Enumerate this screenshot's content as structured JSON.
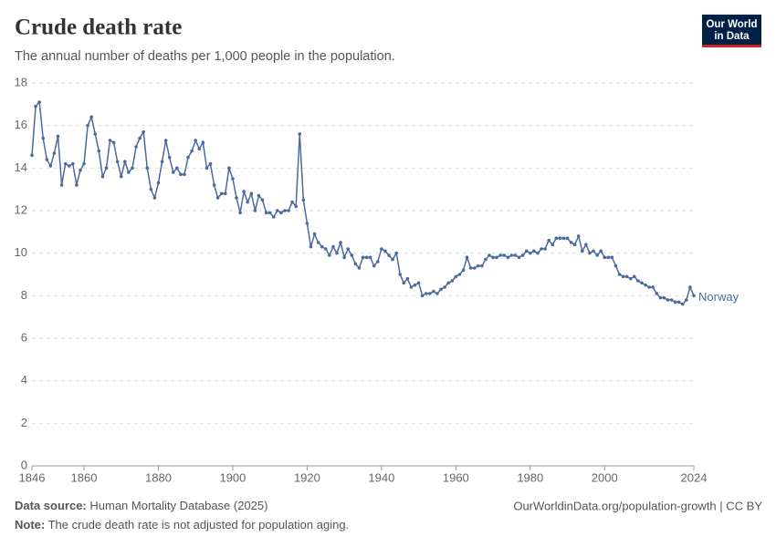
{
  "chart_data": {
    "type": "line",
    "title": "Crude death rate",
    "subtitle": "The annual number of deaths per 1,000 people in the population.",
    "logo": [
      "Our World",
      "in Data"
    ],
    "source_label": "Data source:",
    "source": "Human Mortality Database (2025)",
    "url": "OurWorldinData.org/population-growth | CC BY",
    "note_label": "Note:",
    "note": "The crude death rate is not adjusted for population aging.",
    "x": [
      1846,
      1847,
      1848,
      1849,
      1850,
      1851,
      1852,
      1853,
      1854,
      1855,
      1856,
      1857,
      1858,
      1859,
      1860,
      1861,
      1862,
      1863,
      1864,
      1865,
      1866,
      1867,
      1868,
      1869,
      1870,
      1871,
      1872,
      1873,
      1874,
      1875,
      1876,
      1877,
      1878,
      1879,
      1880,
      1881,
      1882,
      1883,
      1884,
      1885,
      1886,
      1887,
      1888,
      1889,
      1890,
      1891,
      1892,
      1893,
      1894,
      1895,
      1896,
      1897,
      1898,
      1899,
      1900,
      1901,
      1902,
      1903,
      1904,
      1905,
      1906,
      1907,
      1908,
      1909,
      1910,
      1911,
      1912,
      1913,
      1914,
      1915,
      1916,
      1917,
      1918,
      1919,
      1920,
      1921,
      1922,
      1923,
      1924,
      1925,
      1926,
      1927,
      1928,
      1929,
      1930,
      1931,
      1932,
      1933,
      1934,
      1935,
      1936,
      1937,
      1938,
      1939,
      1940,
      1941,
      1942,
      1943,
      1944,
      1945,
      1946,
      1947,
      1948,
      1949,
      1950,
      1951,
      1952,
      1953,
      1954,
      1955,
      1956,
      1957,
      1958,
      1959,
      1960,
      1961,
      1962,
      1963,
      1964,
      1965,
      1966,
      1967,
      1968,
      1969,
      1970,
      1971,
      1972,
      1973,
      1974,
      1975,
      1976,
      1977,
      1978,
      1979,
      1980,
      1981,
      1982,
      1983,
      1984,
      1985,
      1986,
      1987,
      1988,
      1989,
      1990,
      1991,
      1992,
      1993,
      1994,
      1995,
      1996,
      1997,
      1998,
      1999,
      2000,
      2001,
      2002,
      2003,
      2004,
      2005,
      2006,
      2007,
      2008,
      2009,
      2010,
      2011,
      2012,
      2013,
      2014,
      2015,
      2016,
      2017,
      2018,
      2019,
      2020,
      2021,
      2022,
      2023,
      2024
    ],
    "series": [
      {
        "name": "Norway",
        "color": "#4c6a9c",
        "values": [
          14.6,
          16.9,
          17.1,
          15.4,
          14.4,
          14.1,
          14.7,
          15.5,
          13.2,
          14.2,
          14.1,
          14.2,
          13.2,
          13.9,
          14.2,
          16.0,
          16.4,
          15.6,
          14.8,
          13.6,
          14.0,
          15.3,
          15.2,
          14.3,
          13.6,
          14.3,
          13.8,
          14.0,
          15.0,
          15.4,
          15.7,
          14.0,
          13.0,
          12.6,
          13.3,
          14.3,
          15.3,
          14.5,
          13.8,
          14.0,
          13.7,
          13.7,
          14.5,
          14.8,
          15.3,
          14.9,
          15.2,
          14.0,
          14.2,
          13.2,
          12.6,
          12.8,
          12.8,
          14.0,
          13.5,
          12.6,
          11.9,
          12.9,
          12.4,
          12.8,
          12.0,
          12.7,
          12.5,
          11.9,
          11.9,
          11.7,
          12.0,
          11.9,
          12.0,
          12.0,
          12.4,
          12.2,
          15.6,
          12.5,
          11.4,
          10.3,
          10.9,
          10.5,
          10.3,
          10.2,
          9.9,
          10.3,
          10.0,
          10.5,
          9.8,
          10.2,
          9.9,
          9.5,
          9.3,
          9.8,
          9.8,
          9.8,
          9.4,
          9.6,
          10.2,
          10.1,
          9.9,
          9.7,
          10.0,
          9.0,
          8.6,
          8.8,
          8.4,
          8.5,
          8.6,
          8.0,
          8.1,
          8.1,
          8.2,
          8.1,
          8.3,
          8.4,
          8.6,
          8.7,
          8.9,
          9.0,
          9.2,
          9.8,
          9.3,
          9.3,
          9.4,
          9.4,
          9.7,
          9.9,
          9.8,
          9.8,
          9.9,
          9.9,
          9.8,
          9.9,
          9.9,
          9.8,
          9.9,
          10.1,
          10.0,
          10.1,
          10.0,
          10.2,
          10.2,
          10.6,
          10.4,
          10.7,
          10.7,
          10.7,
          10.7,
          10.5,
          10.4,
          10.8,
          10.1,
          10.4,
          10.0,
          10.1,
          9.9,
          10.1,
          9.8,
          9.8,
          9.8,
          9.4,
          9.0,
          8.9,
          8.9,
          8.8,
          8.9,
          8.7,
          8.6,
          8.5,
          8.4,
          8.4,
          8.1,
          7.9,
          7.9,
          7.8,
          7.8,
          7.7,
          7.7,
          7.6,
          7.8,
          8.4,
          8.0
        ]
      }
    ],
    "xlim": [
      1846,
      2024
    ],
    "xticks": [
      1846,
      1860,
      1880,
      1900,
      1920,
      1940,
      1960,
      1980,
      2000,
      2024
    ],
    "ylim": [
      0,
      18
    ],
    "yticks": [
      0,
      2,
      4,
      6,
      8,
      10,
      12,
      14,
      16,
      18
    ],
    "grid": true
  }
}
